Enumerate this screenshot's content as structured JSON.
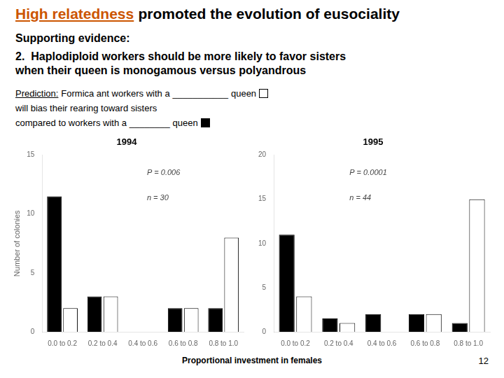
{
  "annotations": [
    [
      {
        "text": "High relatedness",
        "color": "#CC5500"
      },
      {
        "text": "promoted the evolution of eusociality"
      }
    ],
    [
      {
        "text": "Supporting evidence:"
      }
    ],
    [
      {
        "text": "2.  Haplodiploid workers should be more likely to favor sisters"
      }
    ],
    [
      {
        "text": "when their queen is monogamous versus polyandrous"
      }
    ],
    [
      {
        "text": "Prediction:"
      },
      {
        "text": "Formica ant workers with a"
      },
      {
        "text": "___________"
      },
      {
        "text": "queen"
      },
      {
        "marker": "square",
        "color": "#ffffff"
      }
    ],
    [
      {
        "text": "will bias their rearing toward sisters"
      }
    ],
    [
      {
        "text": "compared to workers with a"
      },
      {
        "text": "________"
      },
      {
        "text": "queen"
      },
      {
        "marker": "square",
        "color": "#000000"
      }
    ]
  ],
  "xlabel": "Proportional investment in females",
  "number_label": "12",
  "chart_data": [
    {
      "type": "bar",
      "title": "1994",
      "ylabel": "Number of colonies",
      "categories": [
        "0.0 to 0.2",
        "0.2 to 0.4",
        "0.4 to 0.6",
        "0.6 to 0.8",
        "0.8 to 1.0"
      ],
      "series": [
        {
          "color": "#000000",
          "values": [
            11.5,
            3,
            0,
            2,
            2
          ]
        },
        {
          "color": "#ffffff",
          "values": [
            2,
            3,
            0,
            2,
            8
          ]
        }
      ],
      "ylim": [
        0,
        15
      ],
      "yticks": [
        0,
        5,
        10,
        15
      ],
      "grid": false,
      "annotations": [
        "P = 0.006",
        "n = 30"
      ]
    },
    {
      "type": "bar",
      "title": "1995",
      "categories": [
        "0.0 to 0.2",
        "0.2 to 0.4",
        "0.4 to 0.6",
        "0.6 to 0.8",
        "0.8 to 1.0"
      ],
      "series": [
        {
          "color": "#000000",
          "values": [
            11,
            1.5,
            2,
            2,
            1
          ]
        },
        {
          "color": "#ffffff",
          "values": [
            4,
            1,
            0,
            2,
            15
          ]
        }
      ],
      "ylim": [
        0,
        20
      ],
      "yticks": [
        0,
        5,
        10,
        15,
        20
      ],
      "grid": false,
      "annotations": [
        "P = 0.0001",
        "n = 44"
      ]
    }
  ]
}
